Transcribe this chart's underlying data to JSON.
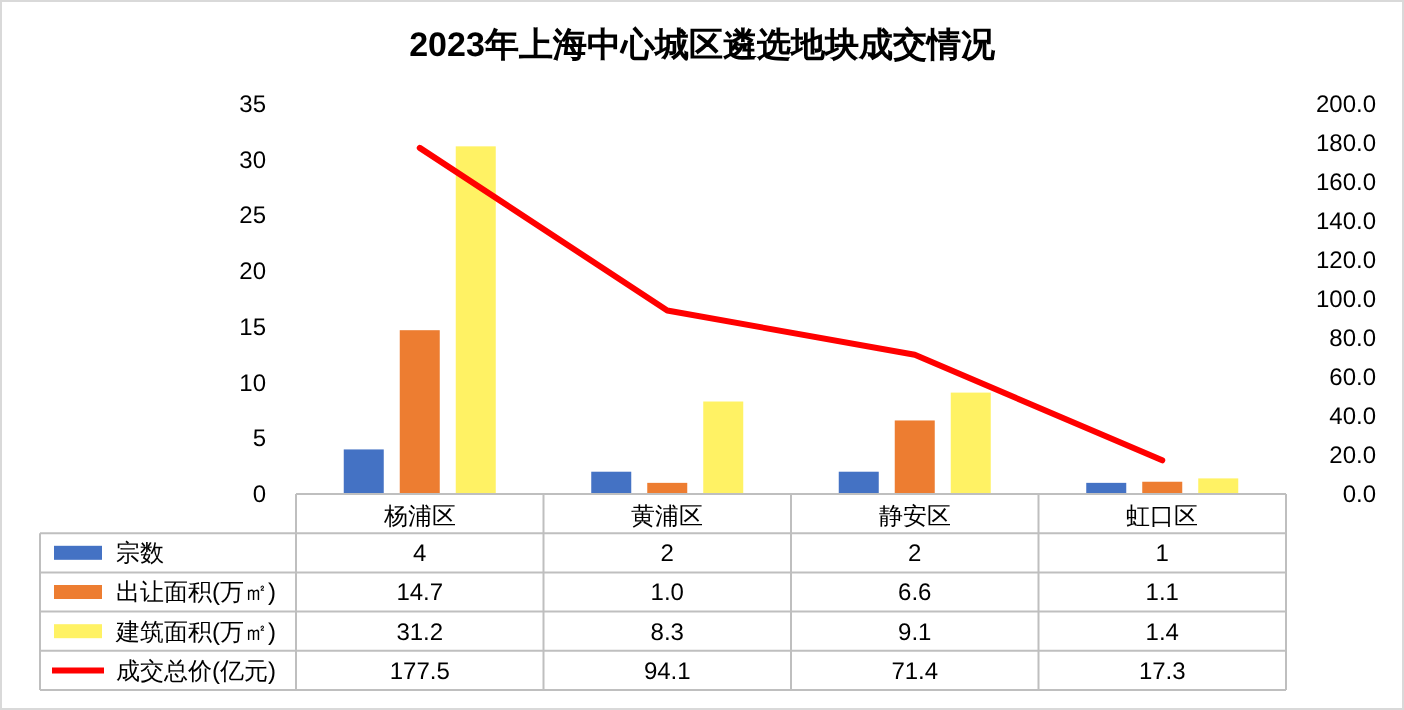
{
  "chart_data": {
    "type": "bar",
    "title": "2023年上海中心城区遴选地块成交情况",
    "categories": [
      "杨浦区",
      "黄浦区",
      "静安区",
      "虹口区"
    ],
    "series": [
      {
        "name": "宗数",
        "color": "#4472c4",
        "values": [
          4,
          2,
          2,
          1
        ],
        "value_labels": [
          "4",
          "2",
          "2",
          "1"
        ]
      },
      {
        "name": "出让面积(万㎡)",
        "color": "#ed7d31",
        "values": [
          14.7,
          1.0,
          6.6,
          1.1
        ],
        "value_labels": [
          "14.7",
          "1.0",
          "6.6",
          "1.1"
        ]
      },
      {
        "name": "建筑面积(万㎡)",
        "color": "#fff264",
        "values": [
          31.2,
          8.3,
          9.1,
          1.4
        ],
        "value_labels": [
          "31.2",
          "8.3",
          "9.1",
          "1.4"
        ]
      },
      {
        "name": "成交总价(亿元)",
        "color": "#ff0000",
        "type": "line",
        "axis": "y2",
        "values": [
          177.5,
          94.1,
          71.4,
          17.3
        ],
        "value_labels": [
          "177.5",
          "94.1",
          "71.4",
          "17.3"
        ]
      }
    ],
    "ylim": [
      0,
      35
    ],
    "yticks": [
      0,
      5,
      10,
      15,
      20,
      25,
      30,
      35
    ],
    "y2lim": [
      0,
      200
    ],
    "y2ticks": [
      {
        "value": 0,
        "label": "0.0"
      },
      {
        "value": 20,
        "label": "20.0"
      },
      {
        "value": 40,
        "label": "40.0"
      },
      {
        "value": 60,
        "label": "60.0"
      },
      {
        "value": 80,
        "label": "80.0"
      },
      {
        "value": 100,
        "label": "100.0"
      },
      {
        "value": 120,
        "label": "120.0"
      },
      {
        "value": 140,
        "label": "140.0"
      },
      {
        "value": 160,
        "label": "160.0"
      },
      {
        "value": 180,
        "label": "180.0"
      },
      {
        "value": 200,
        "label": "200.0"
      }
    ],
    "legend": "bottom"
  }
}
